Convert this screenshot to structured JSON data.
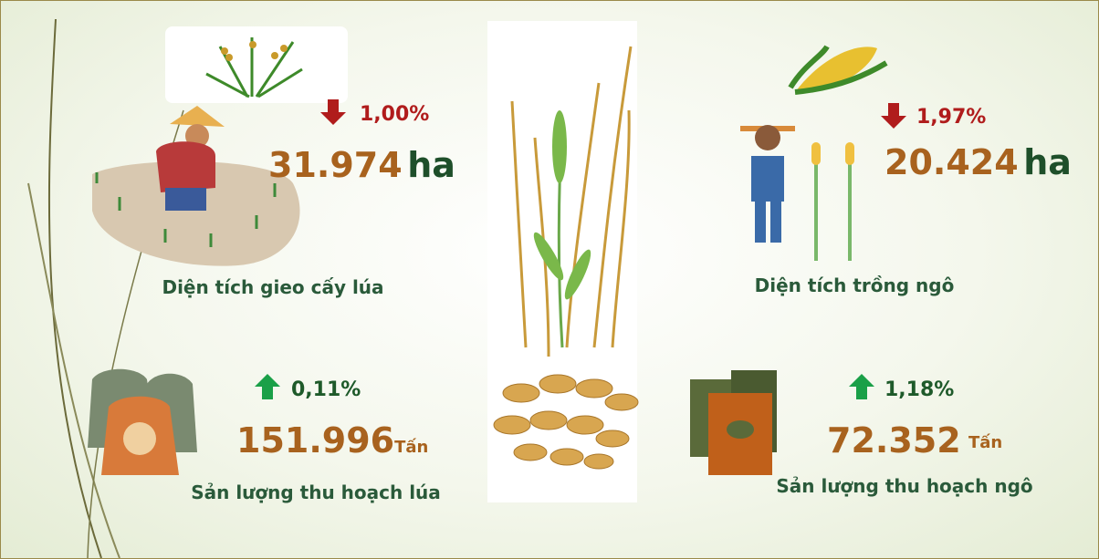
{
  "blocks": [
    {
      "change": "1,00%",
      "amount": "31.974",
      "unit": "ha",
      "label": "Diện tích gieo cấy lúa"
    },
    {
      "change": "1,97%",
      "amount": "20.424",
      "unit": "ha",
      "label": "Diện tích trồng ngô"
    },
    {
      "change": "0,11%",
      "amount": "151.996",
      "unit": "Tấn",
      "label": "Sản lượng thu hoạch lúa"
    },
    {
      "change": "1,18%",
      "amount": "72.352",
      "unit": "Tấn",
      "label": "Sản lượng thu hoạch ngô"
    }
  ]
}
